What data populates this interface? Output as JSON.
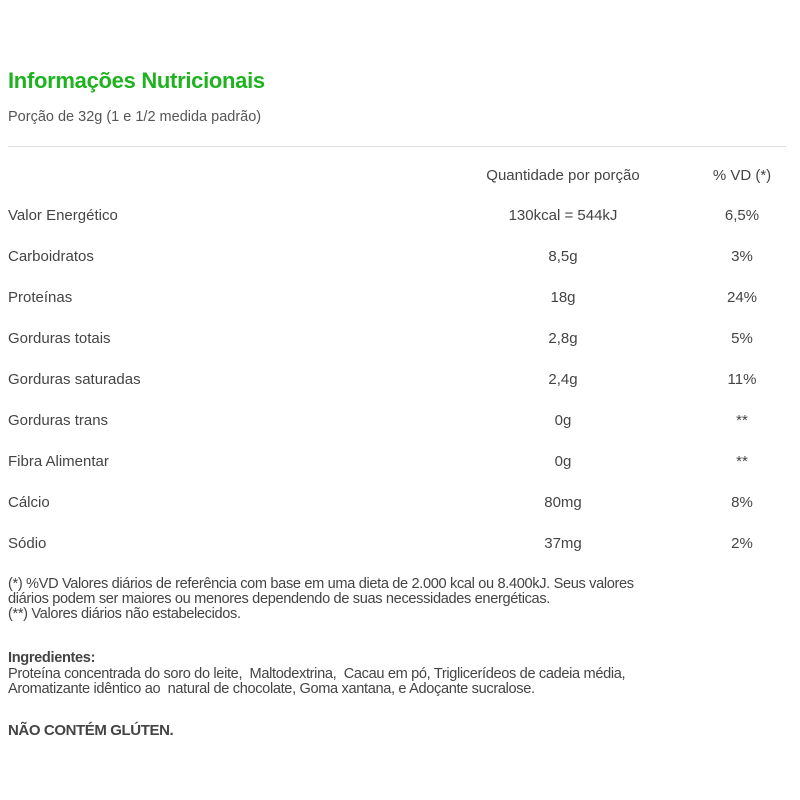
{
  "title": "Informações Nutricionais",
  "serving": "Porção de 32g (1 e 1/2 medida padrão)",
  "colors": {
    "accent": "#1fb31f",
    "text": "#444444"
  },
  "table": {
    "headers": {
      "quantity": "Quantidade por porção",
      "dv": "% VD (*)"
    },
    "rows": [
      {
        "label": "Valor Energético",
        "quantity": "130kcal = 544kJ",
        "dv": "6,5%"
      },
      {
        "label": "Carboidratos",
        "quantity": "8,5g",
        "dv": "3%"
      },
      {
        "label": "Proteínas",
        "quantity": "18g",
        "dv": "24%"
      },
      {
        "label": "Gorduras totais",
        "quantity": "2,8g",
        "dv": "5%"
      },
      {
        "label": "Gorduras saturadas",
        "quantity": "2,4g",
        "dv": "11%"
      },
      {
        "label": "Gorduras trans",
        "quantity": "0g",
        "dv": "**"
      },
      {
        "label": "Fibra Alimentar",
        "quantity": "0g",
        "dv": "**"
      },
      {
        "label": "Cálcio",
        "quantity": "80mg",
        "dv": "8%"
      },
      {
        "label": "Sódio",
        "quantity": "37mg",
        "dv": "2%"
      }
    ]
  },
  "notes": [
    "(*) %VD Valores diários de referência com base em uma dieta de 2.000 kcal ou 8.400kJ. Seus valores",
    "diários podem ser maiores ou menores dependendo de suas necessidades energéticas.",
    "(**) Valores diários não estabelecidos."
  ],
  "ingredients": {
    "heading": "Ingredientes:",
    "lines": [
      "Proteína concentrada do soro do leite,  Maltodextrina,  Cacau em pó, Triglicerídeos de cadeia média,",
      "Aromatizante idêntico ao  natural de chocolate, Goma xantana, e Adoçante sucralose."
    ]
  },
  "gluten": "NÃO CONTÉM GLÚTEN."
}
